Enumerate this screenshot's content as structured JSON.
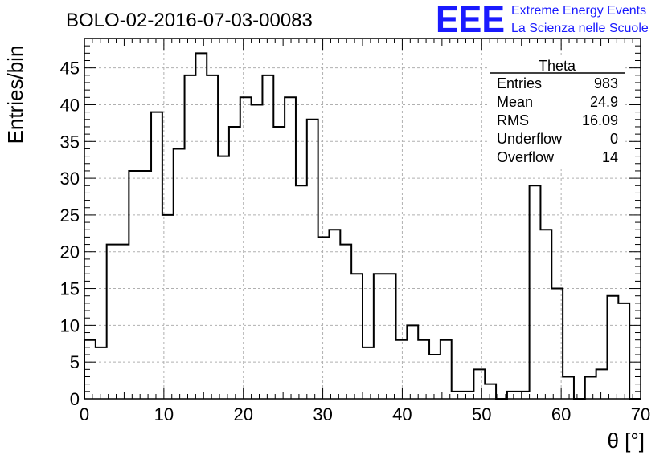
{
  "header": {
    "title": "BOLO-02-2016-07-03-00083",
    "logo_letters": "EEE",
    "logo_line1": "Extreme Energy Events",
    "logo_line2": "La Scienza nelle Scuole",
    "logo_color": "#1a1aff"
  },
  "stats": {
    "name": "Theta",
    "rows": [
      {
        "label": "Entries",
        "value": "983"
      },
      {
        "label": "Mean",
        "value": "24.9"
      },
      {
        "label": "RMS",
        "value": "16.09"
      },
      {
        "label": "Underflow",
        "value": "0"
      },
      {
        "label": "Overflow",
        "value": "14"
      }
    ]
  },
  "chart_data": {
    "type": "bar",
    "histogram": true,
    "xlabel": "θ [°]",
    "ylabel": "Entries/bin",
    "xlim": [
      0,
      70
    ],
    "ylim": [
      0,
      49
    ],
    "bin_width": 1.4,
    "x_ticks": [
      0,
      10,
      20,
      30,
      40,
      50,
      60,
      70
    ],
    "y_ticks": [
      0,
      5,
      10,
      15,
      20,
      25,
      30,
      35,
      40,
      45
    ],
    "grid": true,
    "values": [
      8,
      7,
      21,
      21,
      31,
      31,
      39,
      25,
      34,
      44,
      47,
      44,
      33,
      37,
      41,
      40,
      44,
      37,
      41,
      29,
      38,
      22,
      23,
      21,
      17,
      7,
      17,
      17,
      8,
      10,
      8,
      6,
      8,
      1,
      1,
      4,
      2,
      0,
      1,
      1,
      29,
      23,
      15,
      3,
      0,
      3,
      4,
      14,
      13,
      0
    ]
  }
}
